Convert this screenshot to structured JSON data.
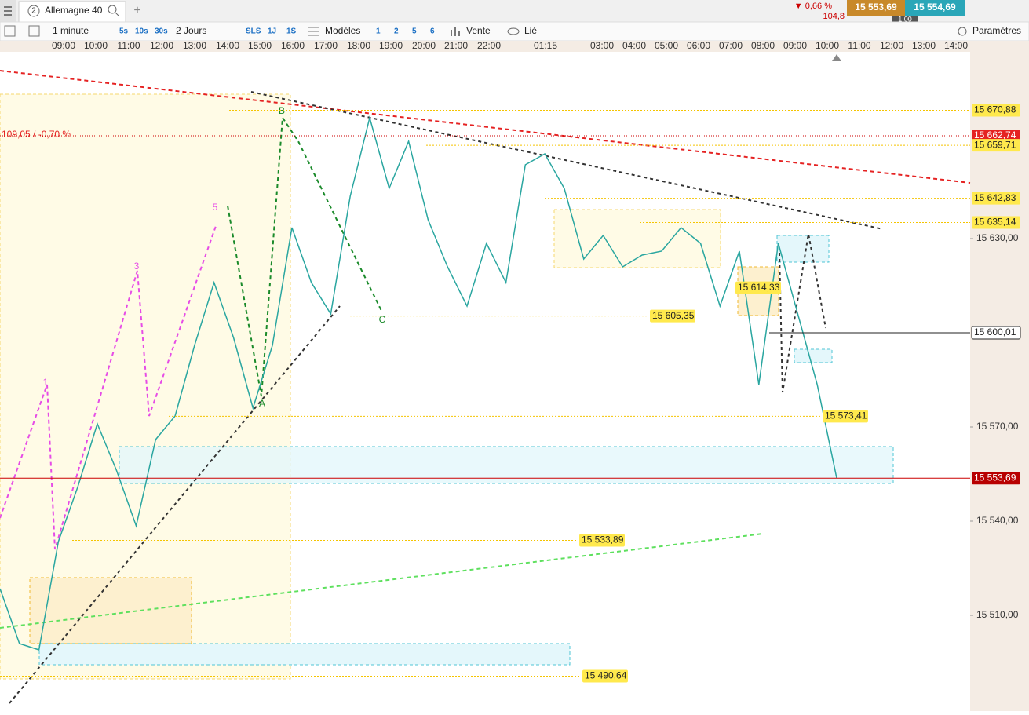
{
  "tab": {
    "number": "2",
    "title": "Allemagne 40"
  },
  "quote": {
    "change": "▼ 0,66 %",
    "change_points": "104,8",
    "bid": "15 553,69",
    "ask": "15 554,69",
    "spread": "1,00"
  },
  "toolbar": {
    "interval": "1 minute",
    "seconds": [
      "5s",
      "10s",
      "30s"
    ],
    "range": "2 Jours",
    "periods": [
      "SLS",
      "1J",
      "1S"
    ],
    "templates": "Modèles",
    "layouts": [
      "1",
      "2",
      "5",
      "6"
    ],
    "sell": "Vente",
    "linked": "Lié",
    "settings": "Paramètres"
  },
  "time_axis": [
    "09:00",
    "10:00",
    "11:00",
    "12:00",
    "13:00",
    "14:00",
    "15:00",
    "16:00",
    "17:00",
    "18:00",
    "19:00",
    "20:00",
    "21:00",
    "22:00",
    "01:15",
    "03:00",
    "04:00",
    "05:00",
    "06:00",
    "07:00",
    "08:00",
    "09:00",
    "10:00",
    "11:00",
    "12:00",
    "13:00",
    "14:00"
  ],
  "price_axis": [
    {
      "value": 15630,
      "label": "15 630,00"
    },
    {
      "value": 15570,
      "label": "15 570,00"
    },
    {
      "value": 15540,
      "label": "15 540,00"
    },
    {
      "value": 15510,
      "label": "15 510,00"
    }
  ],
  "levels": [
    {
      "value": 15670.88,
      "label": "15 670,88"
    },
    {
      "value": 15662.74,
      "label": "15 662,74"
    },
    {
      "value": 15659.71,
      "label": "15 659,71"
    },
    {
      "value": 15642.83,
      "label": "15 642,83"
    },
    {
      "value": 15635.14,
      "label": "15 635,14"
    },
    {
      "value": 15614.33,
      "label": "15 614,33"
    },
    {
      "value": 15605.35,
      "label": "15 605,35"
    },
    {
      "value": 15600.01,
      "label": "15 600,01"
    },
    {
      "value": 15573.41,
      "label": "15 573,41"
    },
    {
      "value": 15553.69,
      "label": "15 553,69"
    },
    {
      "value": 15533.89,
      "label": "15 533,89"
    },
    {
      "value": 15490.64,
      "label": "15 490,64"
    }
  ],
  "annotation": "109,05 / -0,70 %",
  "waves": [
    "1",
    "3",
    "5",
    "A",
    "B",
    "C"
  ],
  "price_path": [
    15518.5,
    15501,
    15499,
    15533.5,
    15551,
    15571,
    15556,
    15538.5,
    15566,
    15573.5,
    15596,
    15616,
    15598.5,
    15576,
    15596,
    15633.5,
    15616,
    15606,
    15643.5,
    15668.5,
    15646,
    15661,
    15636,
    15621,
    15608.5,
    15628.5,
    15616,
    15653.5,
    15657,
    15646,
    15623.5,
    15631,
    15621,
    15624.75,
    15626,
    15633.5,
    15628.5,
    15608.5,
    15626,
    15583.5,
    15628.5,
    15606,
    15583.5,
    15553.69
  ]
}
